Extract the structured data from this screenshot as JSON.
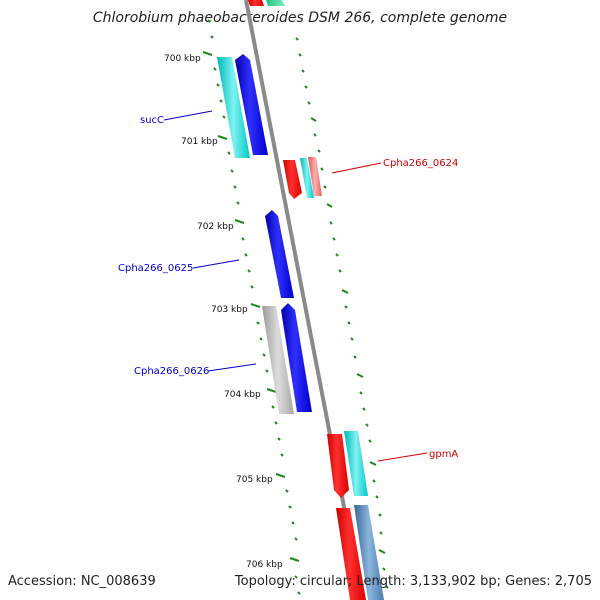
{
  "title": "Chlorobium phaeobacteroides DSM 266, complete genome",
  "footer": {
    "accession": "Accession: NC_008639",
    "stats": "Topology: circular; Length: 3,133,902 bp; Genes: 2,705"
  },
  "ticks": [
    "700 kbp",
    "701 kbp",
    "702 kbp",
    "703 kbp",
    "704 kbp",
    "705 kbp",
    "706 kbp"
  ],
  "genes": [
    {
      "name": "sucC",
      "color": "#0000cc"
    },
    {
      "name": "Cpha266_0624",
      "color": "#cc0000"
    },
    {
      "name": "Cpha266_0625",
      "color": "#0000cc"
    },
    {
      "name": "Cpha266_0626",
      "color": "#0000cc"
    },
    {
      "name": "gpmA",
      "color": "#cc0000"
    }
  ],
  "colors": {
    "backbone": "#808080",
    "tick": "#1a8a1a",
    "forward_cds": "#0000ff",
    "reverse_cds": "#ff0000",
    "cyan_feature": "#00d0d0",
    "grey_feature": "#b0b0b0",
    "steel_feature": "#4a7fb0"
  }
}
